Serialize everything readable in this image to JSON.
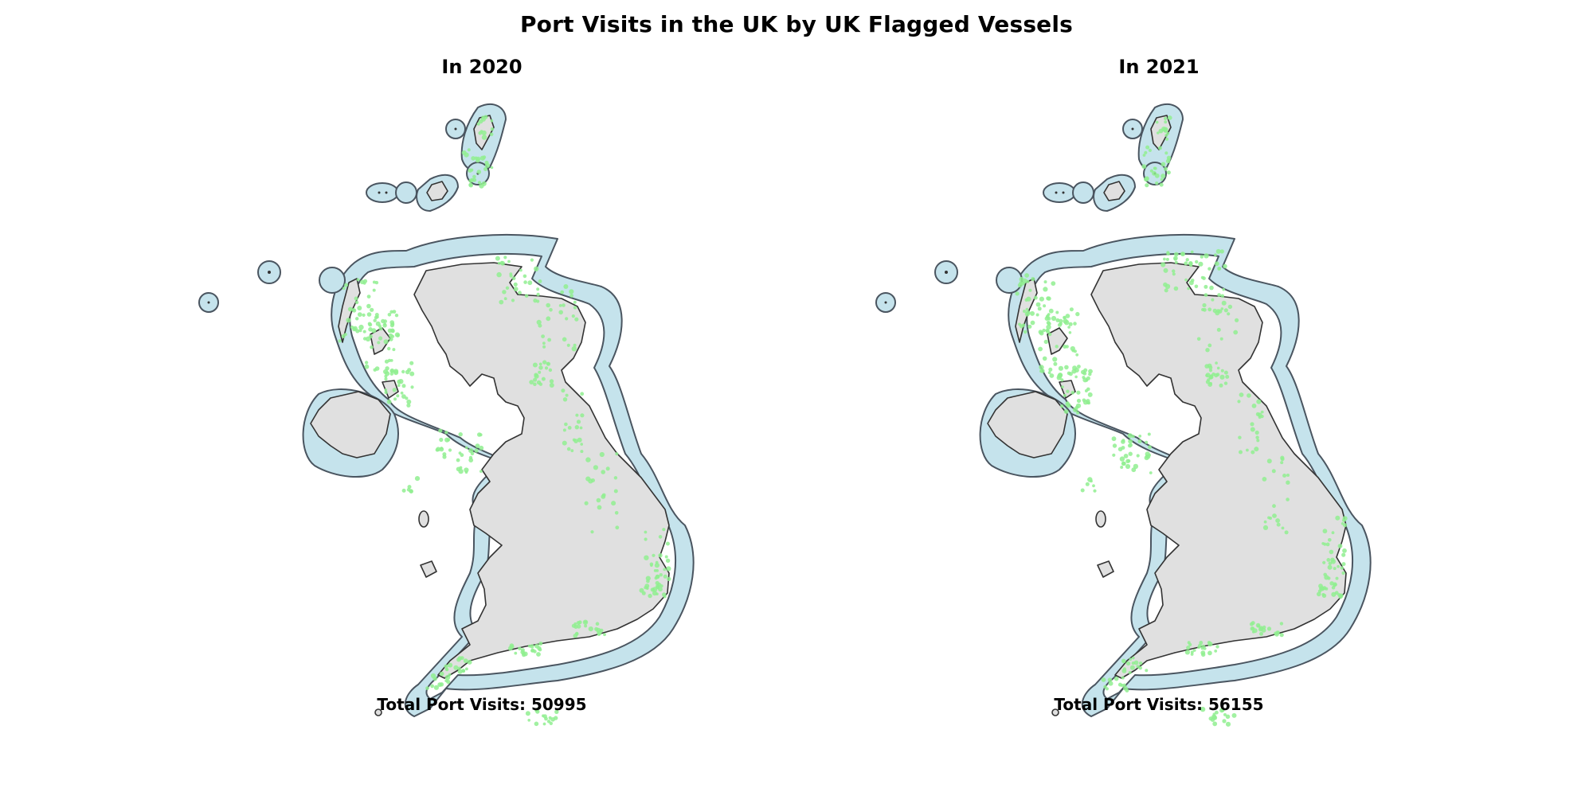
{
  "title": "Port Visits in the UK by UK Flagged Vessels",
  "colors": {
    "land": "#e0e0e0",
    "territorial_waters": "#c5e3ec",
    "port_visits": "#90ee90",
    "outline": "#333333"
  },
  "panels": [
    {
      "title": "In 2020",
      "total_label": "Total Port Visits: 50995"
    },
    {
      "title": "In 2021",
      "total_label": "Total Port Visits: 56155"
    }
  ]
}
